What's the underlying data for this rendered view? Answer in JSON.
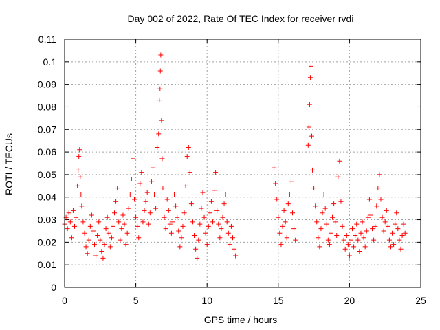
{
  "chart_data": {
    "type": "scatter",
    "title": "Day 002 of 2022, Rate Of TEC Index for receiver rvdi",
    "xlabel": "GPS time / hours",
    "ylabel": "ROTI / TECUs",
    "xlim": [
      0,
      25
    ],
    "ylim": [
      0,
      0.11
    ],
    "xticks": [
      "0",
      "5",
      "10",
      "15",
      "20",
      "25"
    ],
    "yticks": [
      "0",
      "0.01",
      "0.02",
      "0.03",
      "0.04",
      "0.05",
      "0.06",
      "0.07",
      "0.08",
      "0.09",
      "0.1",
      "0.11"
    ],
    "grid": true,
    "marker": "+",
    "color": "#ff0000",
    "series": [
      {
        "values": [
          [
            0.0,
            0.028
          ],
          [
            0.1,
            0.031
          ],
          [
            0.2,
            0.026
          ],
          [
            0.3,
            0.033
          ],
          [
            0.4,
            0.029
          ],
          [
            0.5,
            0.022
          ],
          [
            0.6,
            0.034
          ],
          [
            0.7,
            0.027
          ],
          [
            0.8,
            0.031
          ],
          [
            0.9,
            0.045
          ],
          [
            0.95,
            0.052
          ],
          [
            1.0,
            0.058
          ],
          [
            1.05,
            0.061
          ],
          [
            1.1,
            0.049
          ],
          [
            1.15,
            0.041
          ],
          [
            1.2,
            0.036
          ],
          [
            1.3,
            0.029
          ],
          [
            1.4,
            0.024
          ],
          [
            1.5,
            0.018
          ],
          [
            1.6,
            0.015
          ],
          [
            1.7,
            0.021
          ],
          [
            1.8,
            0.027
          ],
          [
            1.9,
            0.032
          ],
          [
            2.0,
            0.025
          ],
          [
            2.1,
            0.019
          ],
          [
            2.2,
            0.014
          ],
          [
            2.3,
            0.023
          ],
          [
            2.4,
            0.029
          ],
          [
            2.5,
            0.021
          ],
          [
            2.6,
            0.016
          ],
          [
            2.7,
            0.013
          ],
          [
            2.8,
            0.019
          ],
          [
            2.9,
            0.026
          ],
          [
            3.0,
            0.031
          ],
          [
            3.1,
            0.024
          ],
          [
            3.2,
            0.018
          ],
          [
            3.3,
            0.022
          ],
          [
            3.4,
            0.027
          ],
          [
            3.5,
            0.033
          ],
          [
            3.6,
            0.038
          ],
          [
            3.7,
            0.044
          ],
          [
            3.8,
            0.029
          ],
          [
            3.9,
            0.021
          ],
          [
            4.0,
            0.026
          ],
          [
            4.1,
            0.032
          ],
          [
            4.2,
            0.028
          ],
          [
            4.3,
            0.019
          ],
          [
            4.4,
            0.024
          ],
          [
            4.5,
            0.035
          ],
          [
            4.6,
            0.041
          ],
          [
            4.7,
            0.048
          ],
          [
            4.8,
            0.057
          ],
          [
            4.9,
            0.039
          ],
          [
            5.0,
            0.031
          ],
          [
            5.1,
            0.027
          ],
          [
            5.2,
            0.022
          ],
          [
            5.3,
            0.046
          ],
          [
            5.4,
            0.051
          ],
          [
            5.5,
            0.029
          ],
          [
            5.6,
            0.034
          ],
          [
            5.7,
            0.038
          ],
          [
            5.8,
            0.042
          ],
          [
            5.9,
            0.028
          ],
          [
            6.0,
            0.033
          ],
          [
            6.1,
            0.047
          ],
          [
            6.2,
            0.053
          ],
          [
            6.3,
            0.041
          ],
          [
            6.4,
            0.035
          ],
          [
            6.5,
            0.062
          ],
          [
            6.6,
            0.068
          ],
          [
            6.65,
            0.083
          ],
          [
            6.7,
            0.088
          ],
          [
            6.72,
            0.096
          ],
          [
            6.75,
            0.103
          ],
          [
            6.8,
            0.074
          ],
          [
            6.85,
            0.057
          ],
          [
            6.9,
            0.044
          ],
          [
            7.0,
            0.031
          ],
          [
            7.1,
            0.026
          ],
          [
            7.2,
            0.039
          ],
          [
            7.3,
            0.034
          ],
          [
            7.4,
            0.028
          ],
          [
            7.5,
            0.024
          ],
          [
            7.6,
            0.029
          ],
          [
            7.7,
            0.041
          ],
          [
            7.8,
            0.036
          ],
          [
            7.9,
            0.031
          ],
          [
            8.0,
            0.025
          ],
          [
            8.1,
            0.018
          ],
          [
            8.2,
            0.022
          ],
          [
            8.3,
            0.027
          ],
          [
            8.4,
            0.033
          ],
          [
            8.5,
            0.045
          ],
          [
            8.6,
            0.058
          ],
          [
            8.7,
            0.062
          ],
          [
            8.8,
            0.051
          ],
          [
            8.9,
            0.037
          ],
          [
            9.0,
            0.029
          ],
          [
            9.1,
            0.023
          ],
          [
            9.2,
            0.017
          ],
          [
            9.3,
            0.013
          ],
          [
            9.4,
            0.021
          ],
          [
            9.5,
            0.028
          ],
          [
            9.6,
            0.035
          ],
          [
            9.7,
            0.042
          ],
          [
            9.8,
            0.031
          ],
          [
            9.9,
            0.024
          ],
          [
            10.0,
            0.019
          ],
          [
            10.1,
            0.027
          ],
          [
            10.2,
            0.033
          ],
          [
            10.3,
            0.038
          ],
          [
            10.4,
            0.029
          ],
          [
            10.5,
            0.043
          ],
          [
            10.6,
            0.051
          ],
          [
            10.7,
            0.034
          ],
          [
            10.8,
            0.028
          ],
          [
            10.9,
            0.022
          ],
          [
            11.0,
            0.026
          ],
          [
            11.1,
            0.031
          ],
          [
            11.2,
            0.037
          ],
          [
            11.3,
            0.041
          ],
          [
            11.4,
            0.029
          ],
          [
            11.5,
            0.024
          ],
          [
            11.6,
            0.019
          ],
          [
            11.7,
            0.027
          ],
          [
            11.8,
            0.022
          ],
          [
            11.9,
            0.017
          ],
          [
            12.0,
            0.014
          ],
          [
            14.7,
            0.053
          ],
          [
            14.8,
            0.046
          ],
          [
            14.9,
            0.039
          ],
          [
            15.0,
            0.031
          ],
          [
            15.1,
            0.024
          ],
          [
            15.2,
            0.019
          ],
          [
            15.3,
            0.027
          ],
          [
            15.4,
            0.034
          ],
          [
            15.5,
            0.029
          ],
          [
            15.6,
            0.022
          ],
          [
            15.7,
            0.037
          ],
          [
            15.8,
            0.041
          ],
          [
            15.9,
            0.047
          ],
          [
            16.0,
            0.033
          ],
          [
            16.1,
            0.026
          ],
          [
            16.2,
            0.021
          ],
          [
            17.1,
            0.063
          ],
          [
            17.15,
            0.071
          ],
          [
            17.2,
            0.081
          ],
          [
            17.25,
            0.093
          ],
          [
            17.3,
            0.098
          ],
          [
            17.35,
            0.067
          ],
          [
            17.4,
            0.052
          ],
          [
            17.5,
            0.044
          ],
          [
            17.6,
            0.036
          ],
          [
            17.7,
            0.029
          ],
          [
            17.8,
            0.022
          ],
          [
            17.9,
            0.018
          ],
          [
            18.0,
            0.026
          ],
          [
            18.1,
            0.033
          ],
          [
            18.2,
            0.041
          ],
          [
            18.3,
            0.035
          ],
          [
            18.4,
            0.028
          ],
          [
            18.5,
            0.021
          ],
          [
            18.6,
            0.019
          ],
          [
            18.7,
            0.024
          ],
          [
            18.8,
            0.031
          ],
          [
            18.9,
            0.037
          ],
          [
            19.0,
            0.029
          ],
          [
            19.1,
            0.023
          ],
          [
            19.2,
            0.049
          ],
          [
            19.3,
            0.056
          ],
          [
            19.4,
            0.038
          ],
          [
            19.5,
            0.027
          ],
          [
            19.6,
            0.021
          ],
          [
            19.7,
            0.017
          ],
          [
            19.8,
            0.023
          ],
          [
            19.9,
            0.019
          ],
          [
            20.0,
            0.014
          ],
          [
            20.1,
            0.021
          ],
          [
            20.2,
            0.026
          ],
          [
            20.3,
            0.018
          ],
          [
            20.4,
            0.023
          ],
          [
            20.5,
            0.028
          ],
          [
            20.6,
            0.021
          ],
          [
            20.7,
            0.016
          ],
          [
            20.8,
            0.024
          ],
          [
            20.9,
            0.029
          ],
          [
            21.0,
            0.022
          ],
          [
            21.1,
            0.018
          ],
          [
            21.2,
            0.025
          ],
          [
            21.3,
            0.031
          ],
          [
            21.4,
            0.039
          ],
          [
            21.5,
            0.032
          ],
          [
            21.6,
            0.026
          ],
          [
            21.7,
            0.021
          ],
          [
            21.8,
            0.027
          ],
          [
            21.9,
            0.036
          ],
          [
            22.0,
            0.044
          ],
          [
            22.1,
            0.05
          ],
          [
            22.2,
            0.039
          ],
          [
            22.3,
            0.031
          ],
          [
            22.4,
            0.025
          ],
          [
            22.5,
            0.029
          ],
          [
            22.6,
            0.034
          ],
          [
            22.7,
            0.027
          ],
          [
            22.8,
            0.021
          ],
          [
            22.9,
            0.018
          ],
          [
            23.0,
            0.024
          ],
          [
            23.1,
            0.019
          ],
          [
            23.2,
            0.028
          ],
          [
            23.3,
            0.033
          ],
          [
            23.4,
            0.026
          ],
          [
            23.5,
            0.021
          ],
          [
            23.6,
            0.017
          ],
          [
            23.7,
            0.023
          ],
          [
            23.8,
            0.028
          ],
          [
            23.9,
            0.024
          ]
        ]
      }
    ]
  }
}
